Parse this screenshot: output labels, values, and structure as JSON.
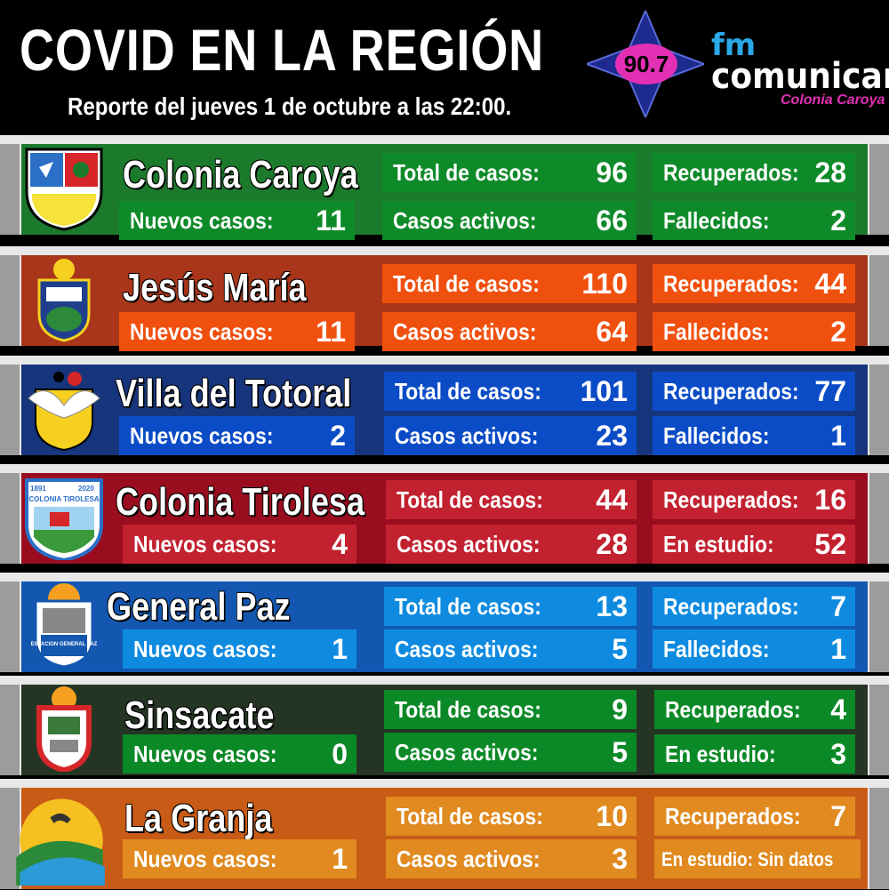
{
  "header": {
    "title": "COVID EN LA REGIÓN",
    "subtitle": "Reporte del jueves 1 de octubre a las 22:00.",
    "radio_frequency": "90.7",
    "radio_logo_prefix": "fm",
    "radio_logo_name": "comunicar",
    "radio_logo_location": "Colonia Caroya"
  },
  "colors": {
    "colonia_caroya": {
      "band": "#1c7a2c",
      "box": "#0e8a29"
    },
    "jesus_maria": {
      "band": "#a9361a",
      "box": "#f0500e"
    },
    "villa_del_totoral": {
      "band": "#16357c",
      "box": "#0b4cc6"
    },
    "colonia_tirolesa": {
      "band": "#9a0d1f",
      "box": "#c22230"
    },
    "general_paz": {
      "band": "#1457b0",
      "box": "#0e8be0"
    },
    "sinsacate": {
      "band": "#253524",
      "box": "#0c8927"
    },
    "la_granja": {
      "band": "#c85b16",
      "box": "#e08a20"
    }
  },
  "cities": [
    {
      "name": "Colonia Caroya",
      "crest_icon": "colonia-caroya-crest-icon",
      "total_label": "Total de casos:",
      "total": "96",
      "recovered_label": "Recuperados:",
      "recovered": "28",
      "new_label": "Nuevos casos:",
      "new": "11",
      "active_label": "Casos activos:",
      "active": "66",
      "extra_label": "Fallecidos:",
      "extra": "2"
    },
    {
      "name": "Jesús María",
      "crest_icon": "jesus-maria-crest-icon",
      "total_label": "Total de casos:",
      "total": "110",
      "recovered_label": "Recuperados:",
      "recovered": "44",
      "new_label": "Nuevos casos:",
      "new": "11",
      "active_label": "Casos activos:",
      "active": "64",
      "extra_label": "Fallecidos:",
      "extra": "2"
    },
    {
      "name": "Villa del Totoral",
      "crest_icon": "villa-del-totoral-crest-icon",
      "total_label": "Total de casos:",
      "total": "101",
      "recovered_label": "Recuperados:",
      "recovered": "77",
      "new_label": "Nuevos casos:",
      "new": "2",
      "active_label": "Casos activos:",
      "active": "23",
      "extra_label": "Fallecidos:",
      "extra": "1"
    },
    {
      "name": "Colonia Tirolesa",
      "crest_icon": "colonia-tirolesa-crest-icon",
      "crest_text": "COLONIA TIROLESA",
      "crest_year_left": "1891",
      "crest_year_right": "2020",
      "total_label": "Total de casos:",
      "total": "44",
      "recovered_label": "Recuperados:",
      "recovered": "16",
      "new_label": "Nuevos casos:",
      "new": "4",
      "active_label": "Casos activos:",
      "active": "28",
      "extra_label": "En estudio:",
      "extra": "52"
    },
    {
      "name": "General Paz",
      "crest_icon": "general-paz-crest-icon",
      "crest_text": "ESTACION GENERAL PAZ",
      "total_label": "Total de casos:",
      "total": "13",
      "recovered_label": "Recuperados:",
      "recovered": "7",
      "new_label": "Nuevos casos:",
      "new": "1",
      "active_label": "Casos activos:",
      "active": "5",
      "extra_label": "Fallecidos:",
      "extra": "1"
    },
    {
      "name": "Sinsacate",
      "crest_icon": "sinsacate-crest-icon",
      "total_label": "Total de casos:",
      "total": "9",
      "recovered_label": "Recuperados:",
      "recovered": "4",
      "new_label": "Nuevos casos:",
      "new": "0",
      "active_label": "Casos activos:",
      "active": "5",
      "extra_label": "En estudio:",
      "extra": "3"
    },
    {
      "name": "La Granja",
      "crest_icon": "la-granja-crest-icon",
      "total_label": "Total de casos:",
      "total": "10",
      "recovered_label": "Recuperados:",
      "recovered": "7",
      "new_label": "Nuevos casos:",
      "new": "1",
      "active_label": "Casos activos:",
      "active": "3",
      "extra_label": "En estudio: Sin datos",
      "extra": ""
    }
  ]
}
